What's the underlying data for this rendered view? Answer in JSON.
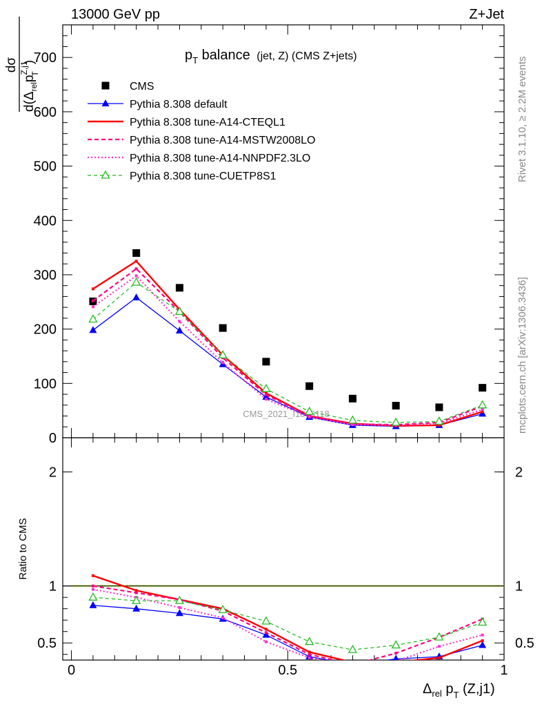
{
  "header": {
    "energy": "13000 GeV pp",
    "process": "Z+Jet",
    "rivet": "Rivet 3.1.10, ≥ 2.2M events",
    "site": "mcplots.cern.ch [arXiv:1306.3436]",
    "watermark": "CMS_2021_I1866118"
  },
  "title": {
    "main": "p",
    "sub": "T",
    "rest": " balance",
    "small": "(jet, Z) (CMS Z+jets)"
  },
  "ylabel_top": {
    "d": "dσ",
    "den_a": "d(Δ",
    "den_b": "rel",
    "den_c": "p",
    "den_d": "Z,j1",
    "den_e": "T",
    "den_f": ")"
  },
  "ylabel_bottom": "Ratio to CMS",
  "xlabel": {
    "delta": "Δ",
    "rel": "rel",
    "p": " p",
    "T": "T",
    "tail": " (Z,j1)"
  },
  "colors": {
    "cms": "#000000",
    "default": "#0000ff",
    "cteql1": "#ff0000",
    "mstw": "#ff0080",
    "nnpdf": "#ff33cc",
    "cuetp": "#22bb22",
    "band": "#ccff55"
  },
  "chart_data": [
    {
      "type": "line",
      "panel": "main",
      "xlim": [
        -0.02,
        1.0
      ],
      "ylim": [
        0,
        760
      ],
      "yticks": [
        0,
        100,
        200,
        300,
        400,
        500,
        600,
        700
      ],
      "ytick_labels": [
        "0",
        "100",
        "200",
        "300",
        "400",
        "500",
        "600",
        "700"
      ],
      "x": [
        0.05,
        0.15,
        0.25,
        0.35,
        0.45,
        0.55,
        0.65,
        0.75,
        0.85,
        0.95
      ],
      "series": [
        {
          "name": "CMS",
          "key": "cms",
          "values": [
            251,
            340,
            276,
            202,
            140,
            95,
            72,
            59,
            56,
            92
          ]
        },
        {
          "name": "Pythia 8.308 default",
          "key": "default",
          "values": [
            198,
            258,
            197,
            135,
            75,
            38,
            23,
            21,
            23,
            44
          ]
        },
        {
          "name": "Pythia 8.308 tune-A14-CTEQL1",
          "key": "cteql1",
          "values": [
            274,
            325,
            236,
            152,
            82,
            40,
            26,
            22,
            23,
            48
          ]
        },
        {
          "name": "Pythia 8.308 tune-A14-MSTW2008LO",
          "key": "mstw",
          "values": [
            252,
            311,
            232,
            147,
            79,
            40,
            25,
            24,
            28,
            58
          ]
        },
        {
          "name": "Pythia 8.308 tune-A14-NNPDF2.3LO",
          "key": "nnpdf",
          "values": [
            241,
            298,
            214,
            138,
            71,
            38,
            24,
            23,
            26,
            52
          ]
        },
        {
          "name": "Pythia 8.308 tune-CUETP8S1",
          "key": "cuetp",
          "values": [
            218,
            286,
            232,
            152,
            90,
            48,
            32,
            28,
            30,
            60
          ]
        }
      ]
    },
    {
      "type": "line",
      "panel": "ratio",
      "ylabel": "Ratio to CMS",
      "ylim": [
        0.35,
        2.3
      ],
      "yticks": [
        0.5,
        1,
        2
      ],
      "ytick_labels": [
        "0.5",
        "1",
        "2"
      ],
      "xticks": [
        0,
        0.5,
        1
      ],
      "xtick_labels": [
        "0",
        "0.5",
        "1"
      ],
      "x": [
        0.05,
        0.15,
        0.25,
        0.35,
        0.45,
        0.55,
        0.65,
        0.75,
        0.85,
        0.95
      ],
      "series": [
        {
          "key": "default",
          "values": [
            0.83,
            0.8,
            0.76,
            0.71,
            0.57,
            0.38,
            0.31,
            0.36,
            0.38,
            0.48
          ]
        },
        {
          "key": "cteql1",
          "values": [
            1.09,
            0.96,
            0.88,
            0.8,
            0.62,
            0.42,
            0.33,
            0.33,
            0.37,
            0.52
          ]
        },
        {
          "key": "mstw",
          "values": [
            1.0,
            0.94,
            0.88,
            0.78,
            0.59,
            0.4,
            0.31,
            0.41,
            0.55,
            0.71
          ]
        },
        {
          "key": "nnpdf",
          "values": [
            0.97,
            0.9,
            0.81,
            0.72,
            0.51,
            0.37,
            0.3,
            0.34,
            0.47,
            0.57
          ]
        },
        {
          "key": "cuetp",
          "values": [
            0.9,
            0.87,
            0.87,
            0.79,
            0.69,
            0.51,
            0.44,
            0.48,
            0.55,
            0.68
          ]
        }
      ]
    }
  ]
}
